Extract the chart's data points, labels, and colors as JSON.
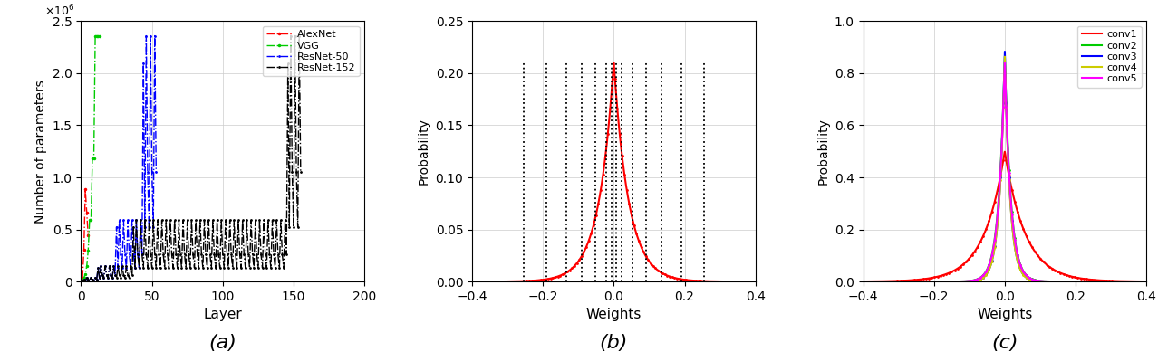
{
  "panel_a": {
    "xlabel": "Layer",
    "ylabel": "Number of parameters",
    "xlim": [
      0,
      200
    ],
    "ylim": [
      0,
      2500000.0
    ],
    "networks": {
      "AlexNet": {
        "color": "#ff0000",
        "label": "AlexNet"
      },
      "VGG": {
        "color": "#00cc00",
        "label": "VGG"
      },
      "ResNet50": {
        "color": "#0000ff",
        "label": "ResNet-50"
      },
      "ResNet152": {
        "color": "#000000",
        "label": "ResNet-152"
      }
    }
  },
  "panel_b": {
    "xlabel": "Weights",
    "ylabel": "Probability",
    "xlim": [
      -0.4,
      0.4
    ],
    "ylim": [
      0,
      0.25
    ],
    "laplace_b": 0.042,
    "laplace_scale": 0.211,
    "boundaries": [
      -0.255,
      -0.19,
      -0.135,
      -0.09,
      -0.052,
      -0.022,
      -0.007,
      0.007,
      0.022,
      0.052,
      0.09,
      0.135,
      0.19,
      0.255
    ],
    "yticks": [
      0,
      0.05,
      0.1,
      0.15,
      0.2,
      0.25
    ]
  },
  "panel_c": {
    "xlabel": "Weights",
    "ylabel": "Probability",
    "xlim": [
      -0.4,
      0.4
    ],
    "ylim": [
      0,
      1.0
    ],
    "yticks": [
      0,
      0.2,
      0.4,
      0.6,
      0.8,
      1.0
    ],
    "curves": [
      {
        "name": "conv1",
        "color": "#ff0000",
        "b": 0.058,
        "peak": 0.5
      },
      {
        "name": "conv2",
        "color": "#00cc00",
        "b": 0.017,
        "peak": 0.875
      },
      {
        "name": "conv3",
        "color": "#0000ff",
        "b": 0.015,
        "peak": 0.895
      },
      {
        "name": "conv4",
        "color": "#cccc00",
        "b": 0.015,
        "peak": 0.875
      },
      {
        "name": "conv5",
        "color": "#ff00ff",
        "b": 0.017,
        "peak": 0.85
      }
    ]
  },
  "background_color": "#ffffff"
}
